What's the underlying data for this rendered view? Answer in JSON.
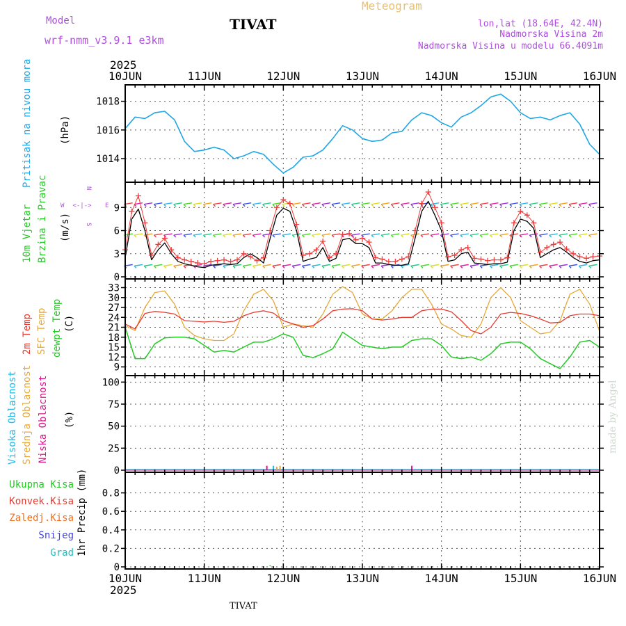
{
  "header": {
    "model_label": "Model",
    "model_name": "wrf-nmm_v3.9.1 e3km",
    "station": "TIVAT",
    "title": "Meteogram",
    "lonlat": "lon,lat (18.64E, 42.4N)",
    "elevation": "Nadmorska Visina 2m",
    "model_elevation": "Nadmorska Visina u modelu 66.4091m",
    "year_top": "2025"
  },
  "footer": {
    "year": "2025",
    "station": "TIVAT"
  },
  "watermark": "made by Angel",
  "x_axis": {
    "ticks": [
      "10JUN",
      "11JUN",
      "12JUN",
      "13JUN",
      "14JUN",
      "15JUN",
      "16JUN"
    ]
  },
  "panels": {
    "pressure": {
      "label": "Pritisak na nivou mora",
      "unit": "(hPa)"
    },
    "wind": {
      "label1": "10m Vjetar",
      "label2": "Brzina i Pravac",
      "unit": "(m/s)",
      "dir_top": "N",
      "dir_bottom": "S",
      "dir_left": "W",
      "dir_right": "E",
      "dir_arrows": "<-|->"
    },
    "temp": {
      "label_2m": "2m Temp",
      "label_sfc": "SFC Temp",
      "label_dew": "dewpt Temp",
      "unit": "(C)"
    },
    "cloud": {
      "label_high": "Visoka Oblacnost",
      "label_mid": "Srednja Oblacnost",
      "label_low": "Niska Oblacnost",
      "unit": "(%)"
    },
    "precip": {
      "legend": [
        "Ukupna Kisa",
        "Konvek.Kisa",
        "Zaledj.Kisa",
        "Snijeg",
        "Grad"
      ],
      "unit": "1hr Precip (mm)"
    }
  },
  "colors": {
    "pressure": "#1fa6e6",
    "temp2m": "#e8392e",
    "sfc": "#e6a93a",
    "dew": "#22cc22",
    "wind_line": "#000000",
    "gust": "#f03c3c",
    "header_purple": "#b04fe0",
    "title_gold": "#e8c070",
    "cloud_high": "#20b8e8",
    "cloud_mid": "#e6a93a",
    "cloud_low": "#e0148a",
    "precip_total": "#22cc22",
    "precip_conv": "#e8392e",
    "precip_frz": "#f07020",
    "precip_snow": "#4040e0",
    "precip_grad": "#20c0c0"
  },
  "chart_data": [
    {
      "type": "line",
      "title": "Pritisak na nivou mora",
      "ylabel": "(hPa)",
      "x_unit": "hours from 10JUN 00UTC",
      "ylim": [
        1012.5,
        1019
      ],
      "yticks": [
        1014,
        1016,
        1018
      ],
      "series": [
        {
          "name": "pressure",
          "x": [
            0,
            3,
            6,
            9,
            12,
            15,
            18,
            21,
            24,
            27,
            30,
            33,
            36,
            39,
            42,
            45,
            48,
            51,
            54,
            57,
            60,
            63,
            66,
            69,
            72,
            75,
            78,
            81,
            84,
            87,
            90,
            93,
            96,
            99,
            102,
            105,
            108,
            111,
            114,
            117,
            120,
            123,
            126,
            129,
            132,
            135,
            138,
            141,
            144
          ],
          "values": [
            1016.1,
            1016.9,
            1016.8,
            1017.2,
            1017.3,
            1016.7,
            1015.2,
            1014.5,
            1014.6,
            1014.8,
            1014.6,
            1014.0,
            1014.2,
            1014.5,
            1014.3,
            1013.6,
            1013.0,
            1013.4,
            1014.1,
            1014.2,
            1014.6,
            1015.4,
            1016.3,
            1016.0,
            1015.4,
            1015.2,
            1015.3,
            1015.8,
            1015.9,
            1016.7,
            1017.2,
            1017.0,
            1016.5,
            1016.2,
            1016.9,
            1017.2,
            1017.7,
            1018.3,
            1018.5,
            1018.0,
            1017.2,
            1016.8,
            1016.9,
            1016.7,
            1017.0,
            1017.2,
            1016.4,
            1015.0,
            1014.3
          ]
        }
      ]
    },
    {
      "type": "line",
      "title": "10m Vjetar Brzina i Pravac",
      "ylabel": "(m/s)",
      "ylim": [
        0,
        12
      ],
      "yticks": [
        0,
        3,
        6,
        9
      ],
      "series": [
        {
          "name": "wind_speed",
          "x": [
            0,
            2,
            4,
            6,
            8,
            10,
            12,
            14,
            16,
            18,
            20,
            22,
            24,
            26,
            28,
            30,
            32,
            34,
            36,
            38,
            40,
            42,
            44,
            46,
            48,
            50,
            52,
            54,
            56,
            58,
            60,
            62,
            64,
            66,
            68,
            70,
            72,
            74,
            76,
            78,
            80,
            82,
            84,
            86,
            88,
            90,
            92,
            94,
            96,
            98,
            100,
            102,
            104,
            106,
            108,
            110,
            112,
            114,
            116,
            118,
            120,
            122,
            124,
            126,
            128,
            130,
            132,
            134,
            136,
            138,
            140,
            142,
            144
          ],
          "values": [
            2.5,
            7.5,
            8.8,
            6,
            2.2,
            3.5,
            4.4,
            3,
            2,
            1.7,
            1.5,
            1.3,
            1.2,
            1.5,
            1.6,
            1.7,
            1.6,
            1.7,
            2.5,
            3,
            2.5,
            1.8,
            5,
            8,
            8.9,
            8.5,
            6,
            2,
            2.3,
            2.5,
            3.8,
            2,
            2.4,
            4.8,
            5,
            4.3,
            4.3,
            3.8,
            1.8,
            1.8,
            1.6,
            1.5,
            1.5,
            1.7,
            5,
            8.5,
            9.8,
            8,
            6,
            2,
            2.2,
            3,
            3.2,
            1.8,
            1.7,
            1.6,
            1.7,
            1.7,
            1.9,
            6,
            7.5,
            7.2,
            6.3,
            2.5,
            3,
            3.5,
            3.8,
            3.2,
            2.5,
            2,
            1.8,
            2.1,
            2.2
          ]
        },
        {
          "name": "gust",
          "x": [
            0,
            2,
            4,
            6,
            8,
            10,
            12,
            14,
            16,
            18,
            20,
            22,
            24,
            26,
            28,
            30,
            32,
            34,
            36,
            38,
            40,
            42,
            44,
            46,
            48,
            50,
            52,
            54,
            56,
            58,
            60,
            62,
            64,
            66,
            68,
            70,
            72,
            74,
            76,
            78,
            80,
            82,
            84,
            86,
            88,
            90,
            92,
            94,
            96,
            98,
            100,
            102,
            104,
            106,
            108,
            110,
            112,
            114,
            116,
            118,
            120,
            122,
            124,
            126,
            128,
            130,
            132,
            134,
            136,
            138,
            140,
            142,
            144
          ],
          "values": [
            3.5,
            8.5,
            10.5,
            7,
            2.8,
            4.2,
            5,
            3.5,
            2.5,
            2.2,
            2,
            1.8,
            1.7,
            2,
            2.1,
            2.2,
            2,
            2.2,
            3,
            2.6,
            2.1,
            2.5,
            6,
            9,
            10,
            9.5,
            6.8,
            2.8,
            3,
            3.5,
            4.6,
            2.5,
            3,
            5.5,
            5.6,
            4.8,
            5,
            4.5,
            2.5,
            2.3,
            2,
            2,
            2.3,
            2.6,
            6,
            9.5,
            11,
            9,
            7,
            2.6,
            2.8,
            3.5,
            3.8,
            2.4,
            2.3,
            2.1,
            2.2,
            2.2,
            2.5,
            7,
            8.5,
            8,
            7,
            3.2,
            3.8,
            4.2,
            4.5,
            3.6,
            3,
            2.6,
            2.4,
            2.6,
            2.7
          ]
        }
      ]
    },
    {
      "type": "line",
      "title": "2m Temp / SFC Temp / dewpt Temp",
      "ylabel": "(C)",
      "ylim": [
        7,
        35
      ],
      "yticks": [
        9,
        12,
        15,
        18,
        21,
        24,
        27,
        30,
        33
      ],
      "series": [
        {
          "name": "2m Temp",
          "x": [
            0,
            3,
            6,
            9,
            12,
            15,
            18,
            21,
            24,
            27,
            30,
            33,
            36,
            39,
            42,
            45,
            48,
            51,
            54,
            57,
            60,
            63,
            66,
            69,
            72,
            75,
            78,
            81,
            84,
            87,
            90,
            93,
            96,
            99,
            102,
            105,
            108,
            111,
            114,
            117,
            120,
            123,
            126,
            129,
            132,
            135,
            138,
            141,
            144
          ],
          "values": [
            22,
            20.5,
            25.2,
            25.8,
            25.5,
            25,
            23,
            22.8,
            22.6,
            22.8,
            22.5,
            22.8,
            24.5,
            25.5,
            26,
            25.3,
            23,
            22,
            21,
            21.5,
            23.5,
            26,
            26.5,
            26.6,
            26,
            23.5,
            23.2,
            23.5,
            24,
            24,
            26,
            26.5,
            26.5,
            25.7,
            23,
            20,
            19,
            21,
            25,
            25.5,
            25.2,
            24.5,
            23.5,
            22.3,
            22.5,
            24.5,
            25,
            25,
            24.5
          ]
        },
        {
          "name": "SFC Temp",
          "x": [
            0,
            3,
            6,
            9,
            12,
            15,
            18,
            21,
            24,
            27,
            30,
            33,
            36,
            39,
            42,
            45,
            48,
            51,
            54,
            57,
            60,
            63,
            66,
            69,
            72,
            75,
            78,
            81,
            84,
            87,
            90,
            93,
            96,
            99,
            102,
            105,
            108,
            111,
            114,
            117,
            120,
            123,
            126,
            129,
            132,
            135,
            138,
            141,
            144
          ],
          "values": [
            21.5,
            20,
            27,
            31.5,
            32,
            28,
            21,
            18.5,
            17.5,
            17,
            17,
            19,
            26,
            31,
            32.5,
            29,
            21,
            22,
            21.5,
            21,
            25,
            31,
            33.3,
            31.5,
            25,
            23.5,
            23.5,
            26,
            30,
            32.5,
            32.5,
            28,
            22,
            20.5,
            18.5,
            18,
            22,
            30,
            33,
            30,
            23,
            21,
            19,
            19.5,
            23,
            31,
            32.5,
            28,
            19.8
          ]
        },
        {
          "name": "dewpt Temp",
          "x": [
            0,
            3,
            6,
            9,
            12,
            15,
            18,
            21,
            24,
            27,
            30,
            33,
            36,
            39,
            42,
            45,
            48,
            51,
            54,
            57,
            60,
            63,
            66,
            69,
            72,
            75,
            78,
            81,
            84,
            87,
            90,
            93,
            96,
            99,
            102,
            105,
            108,
            111,
            114,
            117,
            120,
            123,
            126,
            129,
            132,
            135,
            138,
            141,
            144
          ],
          "values": [
            21,
            11.5,
            11.5,
            16,
            17.8,
            18,
            18,
            17.5,
            15.5,
            13.5,
            14,
            13.5,
            15,
            16.5,
            16.5,
            17.5,
            19,
            18,
            12.5,
            11.8,
            13,
            14.5,
            19.5,
            17.5,
            15.5,
            15,
            14.5,
            15,
            15,
            17,
            17.5,
            17.5,
            15.5,
            12,
            11.5,
            12,
            11,
            13,
            16,
            16.5,
            16.5,
            14.5,
            11.5,
            10,
            8.5,
            12,
            16.5,
            17,
            15
          ]
        }
      ]
    },
    {
      "type": "bar",
      "title": "Visoka / Srednja / Niska Oblacnost",
      "ylabel": "(%)",
      "ylim": [
        0,
        105
      ],
      "yticks": [
        0,
        25,
        50,
        75,
        100
      ],
      "series": [
        {
          "name": "Visoka Oblacnost",
          "x": [
            45
          ],
          "values": [
            5
          ]
        },
        {
          "name": "Srednja Oblacnost",
          "x": [
            46,
            47
          ],
          "values": [
            4,
            5
          ]
        },
        {
          "name": "Niska Oblacnost",
          "x": [
            43,
            87
          ],
          "values": [
            5,
            5
          ]
        }
      ]
    },
    {
      "type": "bar",
      "title": "1hr Precip",
      "ylabel": "1hr Precip (mm)",
      "ylim": [
        0,
        1
      ],
      "yticks": [
        0,
        0.2,
        0.4,
        0.6,
        0.8
      ],
      "series": [
        {
          "name": "Ukupna Kisa",
          "x": [
            44
          ],
          "values": [
            0.01
          ]
        }
      ]
    }
  ]
}
